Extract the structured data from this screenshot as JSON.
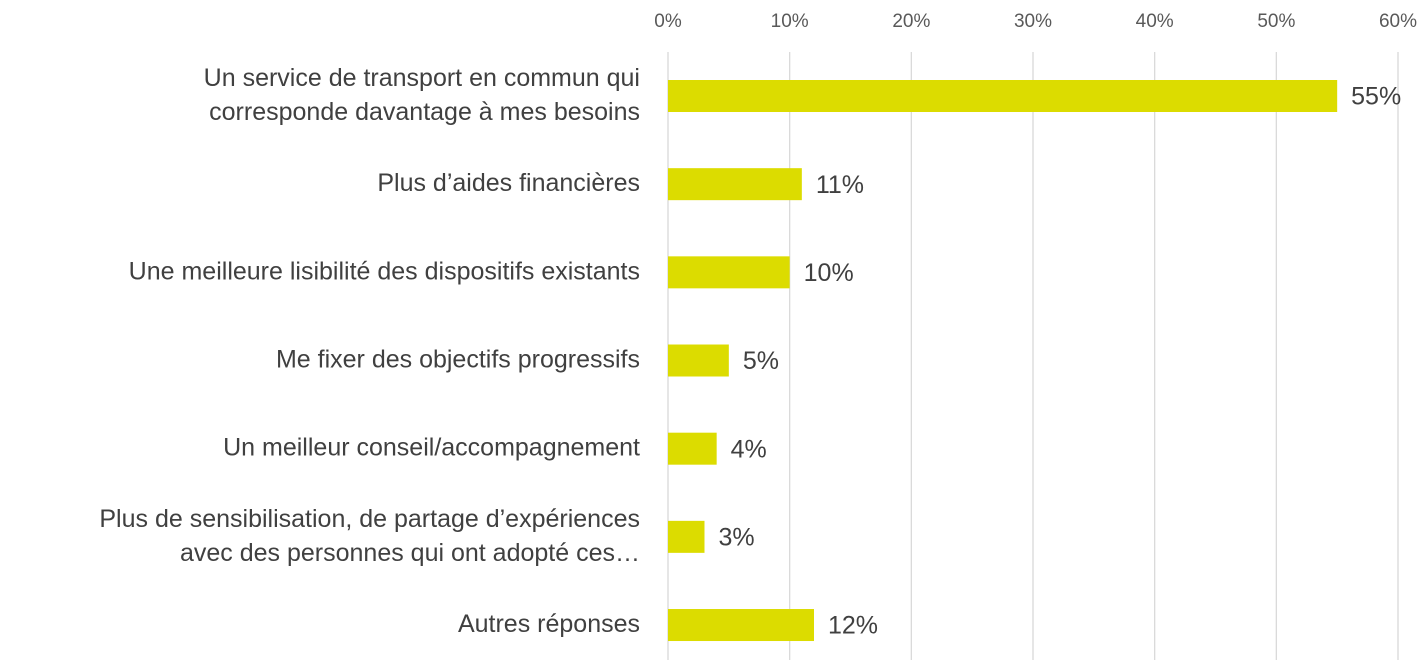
{
  "chart_data": {
    "type": "hbar",
    "categories": [
      "Un service de transport en commun qui\ncorresponde davantage à mes besoins",
      "Plus d’aides financières",
      "Une meilleure lisibilité des dispositifs existants",
      "Me fixer des objectifs progressifs",
      "Un meilleur conseil/accompagnement",
      "Plus de sensibilisation, de partage d’expériences\navec des personnes qui ont adopté ces…",
      "Autres réponses"
    ],
    "values": [
      55,
      11,
      10,
      5,
      4,
      3,
      12
    ],
    "value_labels": [
      "55%",
      "11%",
      "10%",
      "5%",
      "4%",
      "3%",
      "12%"
    ],
    "color": "#dcdc00",
    "xlim": [
      0,
      60
    ],
    "xticks": [
      {
        "value": 0,
        "label": "0%"
      },
      {
        "value": 10,
        "label": "10%"
      },
      {
        "value": 20,
        "label": "20%"
      },
      {
        "value": 30,
        "label": "30%"
      },
      {
        "value": 40,
        "label": "40%"
      },
      {
        "value": 50,
        "label": "50%"
      },
      {
        "value": 60,
        "label": "60%"
      }
    ],
    "grid": true
  }
}
